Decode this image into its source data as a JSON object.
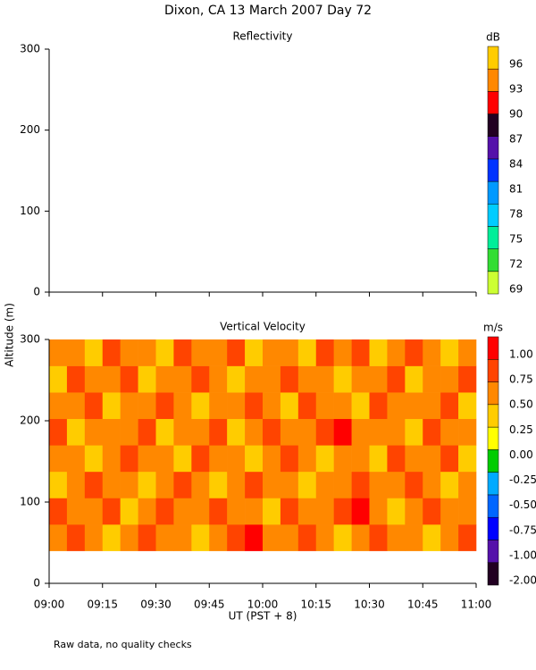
{
  "title": "Dixon, CA 13 March 2007  Day  72",
  "ylabel": "Altitude (m)",
  "xlabel": "UT  (PST + 8)",
  "footnote": "Raw data, no quality checks",
  "chart_data": [
    {
      "type": "heatmap",
      "title": "Reflectivity",
      "colorbar_label": "dB",
      "ylim": [
        0,
        300
      ],
      "yticks": [
        0,
        100,
        200,
        300
      ],
      "colorbar_ticks": [
        69,
        72,
        75,
        78,
        81,
        84,
        87,
        90,
        93,
        96
      ],
      "colorbar_colors": [
        "#ccff33",
        "#33dd33",
        "#00ee99",
        "#00ccff",
        "#0099ff",
        "#0033ff",
        "#5511aa",
        "#220022",
        "#ff0000",
        "#ff8800",
        "#ffcc00"
      ]
    },
    {
      "type": "heatmap",
      "title": "Vertical Velocity",
      "colorbar_label": "m/s",
      "ylim": [
        0,
        300
      ],
      "yticks": [
        0,
        100,
        200,
        300
      ],
      "xlim": [
        "09:00",
        "11:00"
      ],
      "xticks": [
        "09:00",
        "09:15",
        "09:30",
        "09:45",
        "10:00",
        "10:15",
        "10:30",
        "10:45",
        "11:00"
      ],
      "colorbar_ticks": [
        {
          "value": -2,
          "label": "-2.00"
        },
        {
          "value": -1,
          "label": "-1.00"
        },
        {
          "value": -0.75,
          "label": "-0.75"
        },
        {
          "value": -0.5,
          "label": "-0.50"
        },
        {
          "value": -0.25,
          "label": "-0.25"
        },
        {
          "value": 0,
          "label": "0.00"
        },
        {
          "value": 0.25,
          "label": "0.25"
        },
        {
          "value": 0.5,
          "label": "0.50"
        },
        {
          "value": 0.75,
          "label": "0.75"
        },
        {
          "value": 1,
          "label": "1.00"
        }
      ],
      "colorbar_colors": [
        "#220022",
        "#5511aa",
        "#0000ff",
        "#0066ff",
        "#00aaff",
        "#00cc00",
        "#ffff00",
        "#ffcc00",
        "#ff8800",
        "#ff4400",
        "#ff0000"
      ],
      "x": [
        "09:00",
        "09:05",
        "09:10",
        "09:15",
        "09:20",
        "09:25",
        "09:30",
        "09:35",
        "09:40",
        "09:45",
        "09:50",
        "09:55",
        "10:00",
        "10:05",
        "10:10",
        "10:15",
        "10:20",
        "10:25",
        "10:30",
        "10:35",
        "10:40",
        "10:45",
        "10:50",
        "10:55",
        "11:00"
      ],
      "y": [
        40,
        72.5,
        105,
        137.5,
        170,
        202.5,
        235,
        267.5,
        300
      ],
      "z": [
        [
          0.6,
          0.9,
          0.6,
          0.4,
          0.6,
          0.9,
          0.6,
          0.6,
          0.4,
          0.6,
          0.9,
          1.05,
          0.6,
          0.6,
          0.9,
          0.6,
          0.4,
          0.6,
          0.9,
          0.6,
          0.6,
          0.4,
          0.6,
          0.9
        ],
        [
          0.9,
          0.6,
          0.6,
          0.9,
          0.4,
          0.6,
          0.9,
          0.6,
          0.6,
          0.9,
          0.6,
          0.6,
          0.4,
          0.9,
          0.6,
          0.6,
          0.9,
          1.05,
          0.6,
          0.4,
          0.6,
          0.9,
          0.6,
          0.6
        ],
        [
          0.4,
          0.6,
          0.9,
          0.6,
          0.6,
          0.4,
          0.6,
          0.9,
          0.6,
          0.4,
          0.6,
          0.9,
          0.6,
          0.6,
          0.4,
          0.6,
          0.6,
          0.9,
          0.6,
          0.6,
          0.9,
          0.6,
          0.4,
          0.6
        ],
        [
          0.6,
          0.6,
          0.4,
          0.6,
          0.9,
          0.6,
          0.6,
          0.4,
          0.9,
          0.6,
          0.6,
          0.4,
          0.6,
          0.9,
          0.6,
          0.4,
          0.6,
          0.6,
          0.4,
          0.9,
          0.6,
          0.6,
          0.9,
          0.4
        ],
        [
          0.9,
          0.4,
          0.6,
          0.6,
          0.6,
          0.9,
          0.4,
          0.6,
          0.6,
          0.9,
          0.4,
          0.6,
          0.9,
          0.6,
          0.6,
          0.9,
          1.05,
          0.6,
          0.6,
          0.6,
          0.4,
          0.9,
          0.6,
          0.6
        ],
        [
          0.6,
          0.6,
          0.9,
          0.4,
          0.6,
          0.6,
          0.9,
          0.6,
          0.4,
          0.6,
          0.6,
          0.9,
          0.6,
          0.4,
          0.9,
          0.6,
          0.6,
          0.4,
          0.9,
          0.6,
          0.6,
          0.6,
          0.9,
          0.4
        ],
        [
          0.4,
          0.9,
          0.6,
          0.6,
          0.9,
          0.4,
          0.6,
          0.6,
          0.9,
          0.6,
          0.4,
          0.6,
          0.6,
          0.9,
          0.6,
          0.6,
          0.4,
          0.6,
          0.6,
          0.9,
          0.4,
          0.6,
          0.6,
          0.9
        ],
        [
          0.6,
          0.6,
          0.4,
          0.9,
          0.6,
          0.6,
          0.4,
          0.9,
          0.6,
          0.6,
          0.9,
          0.4,
          0.6,
          0.6,
          0.4,
          0.9,
          0.6,
          0.9,
          0.4,
          0.6,
          0.9,
          0.6,
          0.4,
          0.6
        ]
      ]
    }
  ]
}
